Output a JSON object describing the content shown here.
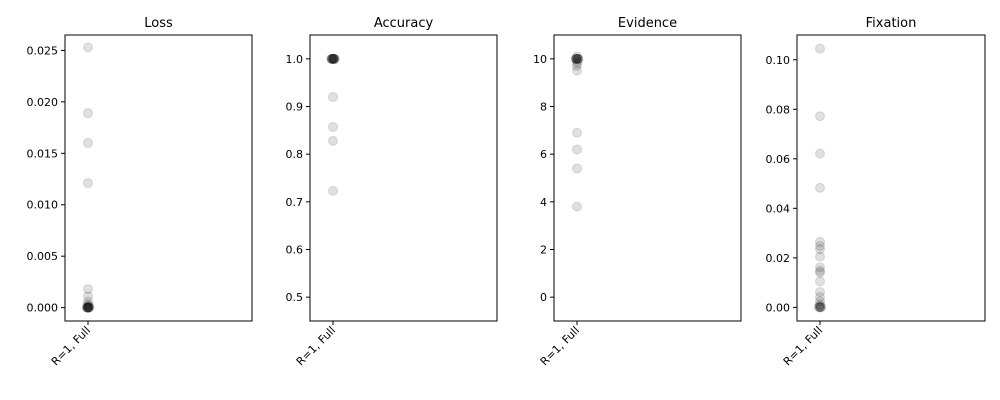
{
  "chart_data": [
    {
      "type": "scatter",
      "title": "Loss",
      "categories": [
        "R=1, Full"
      ],
      "ylim": [
        -0.0013,
        0.0265
      ],
      "yticks": [
        0.0,
        0.005,
        0.01,
        0.015,
        0.02,
        0.025
      ],
      "ytick_labels": [
        "0.000",
        "0.005",
        "0.010",
        "0.015",
        "0.020",
        "0.025"
      ],
      "grid": false,
      "series": [
        {
          "values": [
            0.0253,
            0.0189,
            0.016,
            0.0121,
            0.0018,
            0.0011,
            0.0006,
            0.0003,
            0.0002,
            0.0001,
            0.0001,
            0.0,
            0.0,
            0.0,
            0.0,
            0.0,
            0.0,
            0.0,
            0.0,
            0.0
          ],
          "jitter": [
            0.0,
            0.0,
            0.0,
            0.0,
            0.0,
            0.0,
            0.0,
            -0.05,
            0.1,
            -0.1,
            0.15,
            -0.15,
            0.2,
            0.05,
            -0.05,
            0.0,
            0.12,
            -0.12,
            0.07,
            -0.07
          ]
        }
      ]
    },
    {
      "type": "scatter",
      "title": "Accuracy",
      "categories": [
        "R=1, Full"
      ],
      "ylim": [
        0.45,
        1.05
      ],
      "yticks": [
        0.5,
        0.6,
        0.7,
        0.8,
        0.9,
        1.0
      ],
      "ytick_labels": [
        "0.5",
        "0.6",
        "0.7",
        "0.8",
        "0.9",
        "1.0"
      ],
      "grid": false,
      "series": [
        {
          "values": [
            1.0,
            1.0,
            1.0,
            1.0,
            1.0,
            1.0,
            1.0,
            1.0,
            1.0,
            1.0,
            1.0,
            1.0,
            0.92,
            0.857,
            0.828,
            0.723
          ],
          "jitter": [
            -0.2,
            -0.15,
            -0.1,
            -0.05,
            0.0,
            0.05,
            0.1,
            0.15,
            0.2,
            0.25,
            -0.25,
            0.08,
            0.0,
            0.0,
            0.0,
            0.0
          ]
        }
      ]
    },
    {
      "type": "scatter",
      "title": "Evidence",
      "categories": [
        "R=1, Full"
      ],
      "ylim": [
        -1,
        11
      ],
      "yticks": [
        0,
        2,
        4,
        6,
        8,
        10
      ],
      "ytick_labels": [
        "0",
        "2",
        "4",
        "6",
        "8",
        "10"
      ],
      "grid": false,
      "series": [
        {
          "values": [
            10.1,
            10.0,
            10.0,
            10.0,
            10.0,
            10.0,
            10.0,
            10.0,
            10.0,
            9.9,
            9.8,
            9.7,
            9.5,
            6.9,
            6.2,
            5.4,
            3.8
          ],
          "jitter": [
            0.0,
            -0.2,
            -0.15,
            -0.1,
            -0.05,
            0.05,
            0.1,
            0.15,
            0.2,
            0.0,
            0.05,
            -0.05,
            0.0,
            0.0,
            0.0,
            0.0,
            0.0
          ]
        }
      ]
    },
    {
      "type": "scatter",
      "title": "Fixation",
      "categories": [
        "R=1, Full"
      ],
      "ylim": [
        -0.0055,
        0.11
      ],
      "yticks": [
        0.0,
        0.02,
        0.04,
        0.06,
        0.08,
        0.1
      ],
      "ytick_labels": [
        "0.00",
        "0.02",
        "0.04",
        "0.06",
        "0.08",
        "0.10"
      ],
      "grid": false,
      "series": [
        {
          "values": [
            0.1045,
            0.0772,
            0.0621,
            0.0483,
            0.0265,
            0.0248,
            0.0235,
            0.0205,
            0.0162,
            0.0148,
            0.014,
            0.0105,
            0.0062,
            0.0042,
            0.0025,
            0.0012,
            0.0005,
            0.0003,
            0.0001,
            0.0,
            0.0,
            0.0
          ],
          "jitter": [
            0.0,
            0.0,
            0.0,
            0.0,
            0.0,
            0.0,
            0.0,
            0.0,
            0.0,
            0.0,
            0.0,
            0.0,
            0.0,
            0.0,
            0.0,
            0.0,
            -0.1,
            0.1,
            -0.05,
            0.05,
            -0.15,
            0.15
          ]
        }
      ]
    }
  ]
}
